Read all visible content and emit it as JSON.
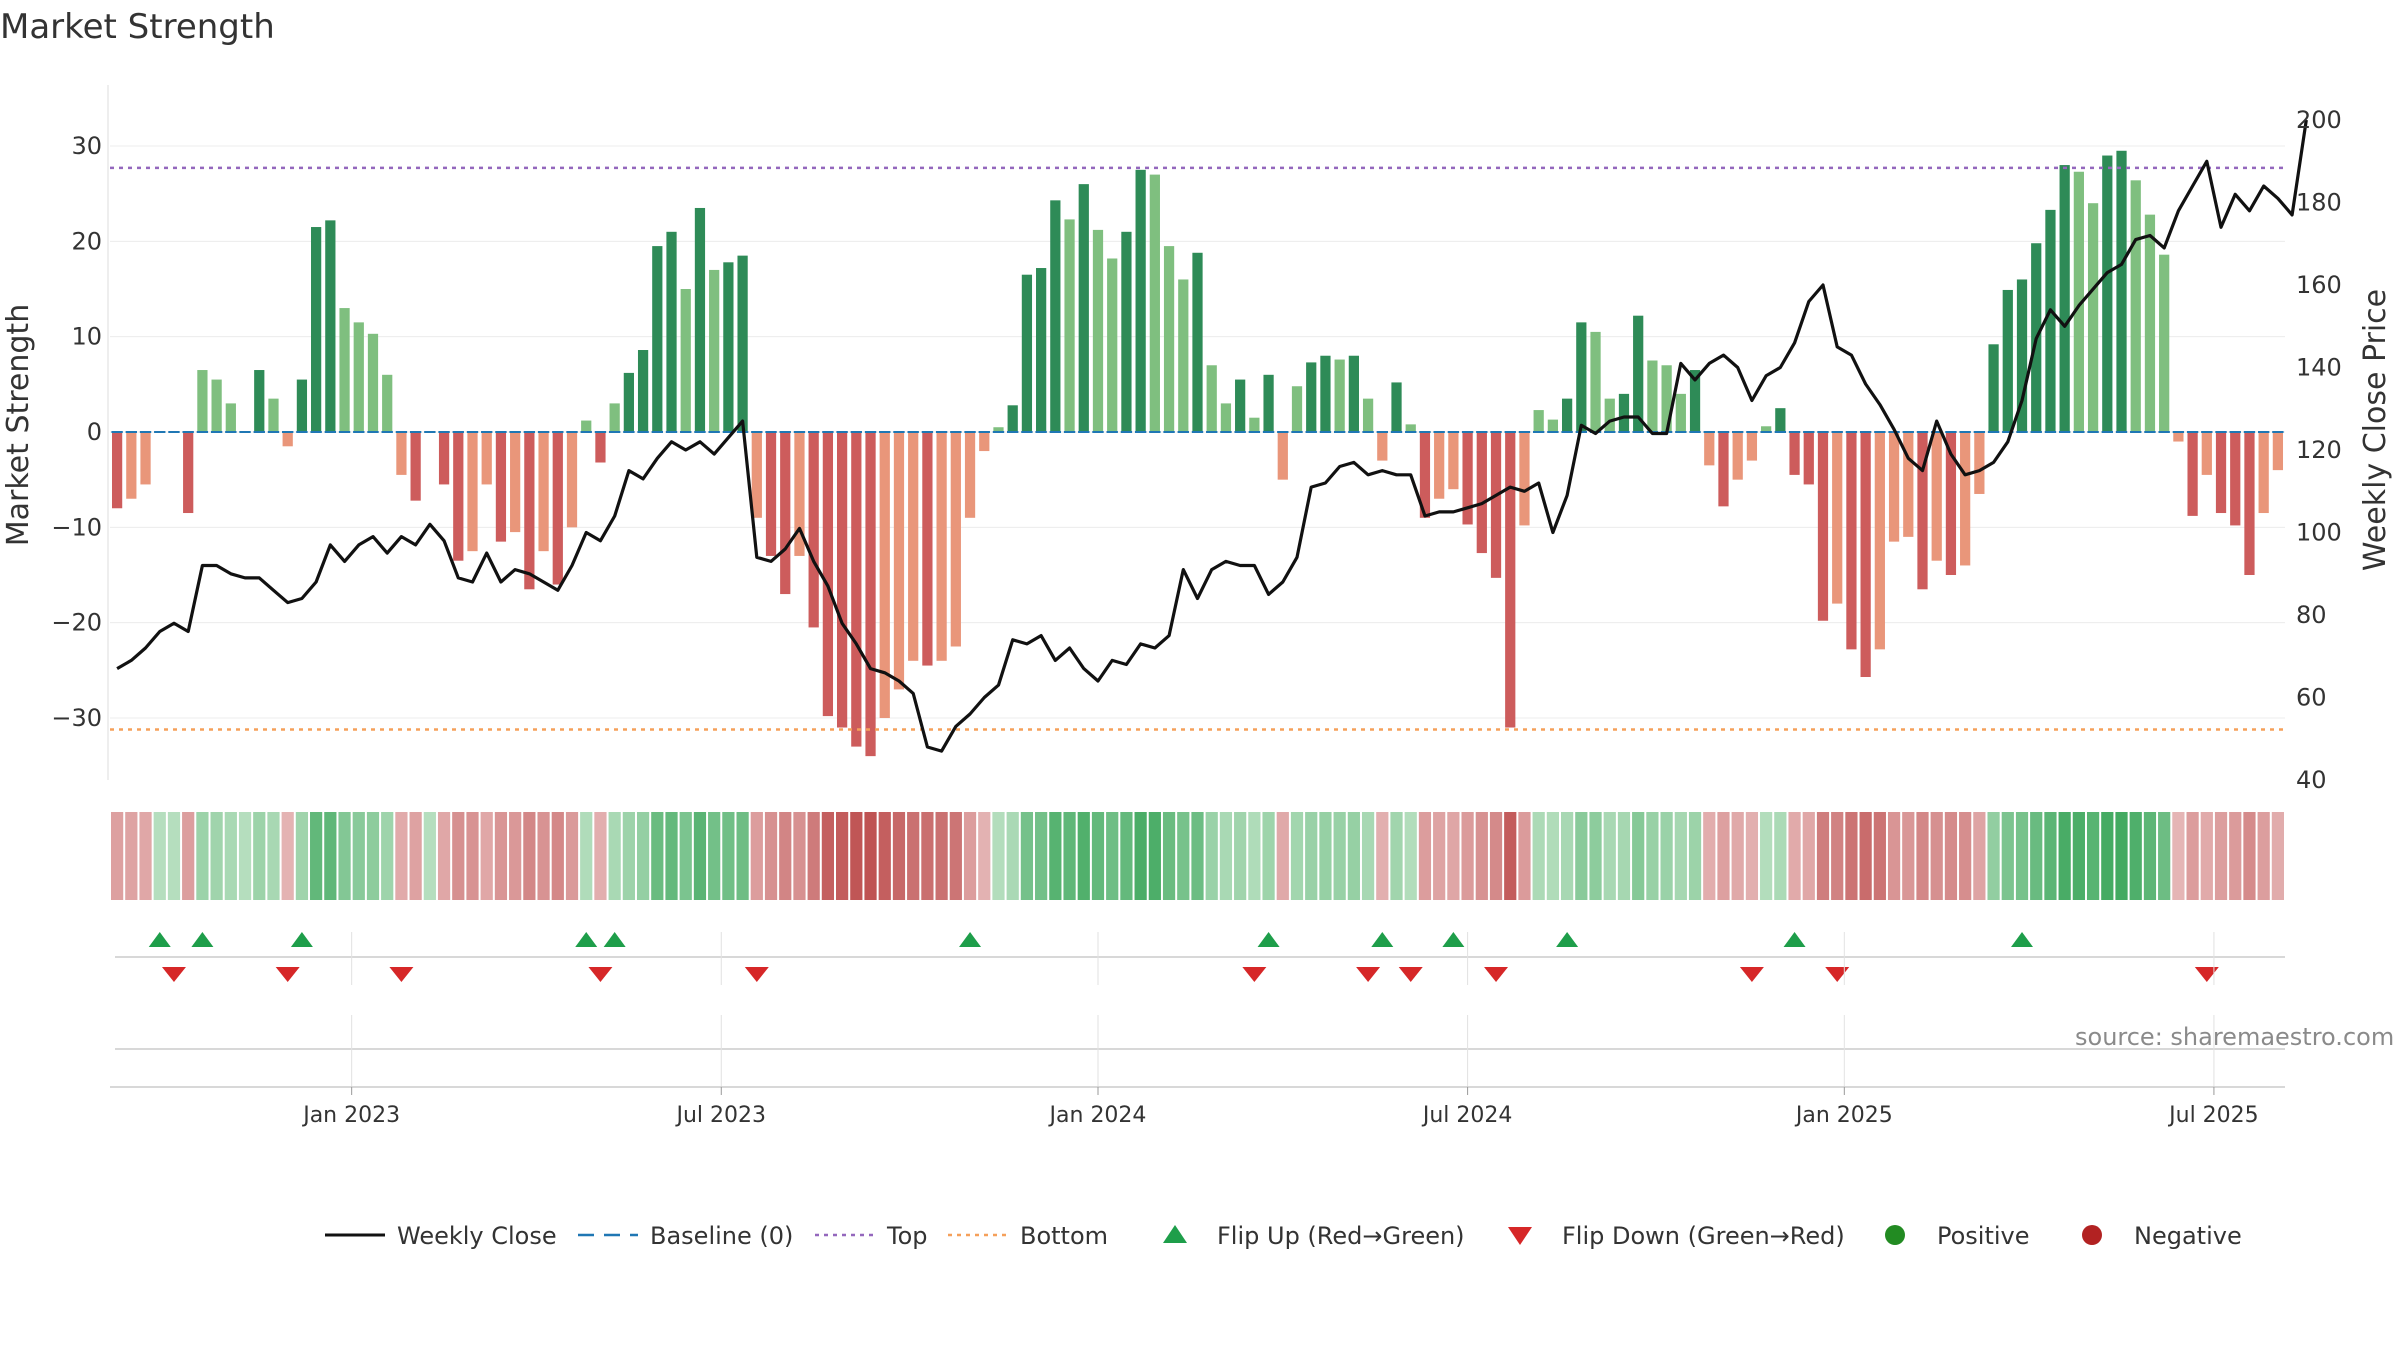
{
  "chart_data": {
    "type": "bar",
    "title": "Market Strength",
    "source_text": "source: sharemaestro.com",
    "left_axis": {
      "label": "Market Strength",
      "ylim": [
        -37,
        37
      ],
      "ticks": [
        30,
        20,
        10,
        0,
        -10,
        -20,
        -30
      ]
    },
    "right_axis": {
      "label": "Weekly Close Price",
      "ylim": [
        40,
        203
      ],
      "ticks": [
        200,
        180,
        160,
        140,
        120,
        100,
        80,
        60,
        40
      ]
    },
    "date_ticks": [
      {
        "label": "Jan 2023",
        "week": 17
      },
      {
        "label": "Jul 2023",
        "week": 43
      },
      {
        "label": "Jan 2024",
        "week": 69.5
      },
      {
        "label": "Jul 2024",
        "week": 95.5
      },
      {
        "label": "Jan 2025",
        "week": 122
      },
      {
        "label": "Jul 2025",
        "week": 148
      }
    ],
    "reference_lines": {
      "top": 27.7,
      "bottom": -31.2,
      "baseline": 0
    },
    "strength": [
      -8,
      -7,
      -5.5,
      0,
      0,
      -8.5,
      6.5,
      5.5,
      3,
      0,
      6.5,
      3.5,
      -1.5,
      5.5,
      21.5,
      22.2,
      13,
      11.5,
      10.3,
      6,
      -4.5,
      -7.2,
      0,
      -5.5,
      -13.5,
      -12.5,
      -5.5,
      -11.5,
      -10.5,
      -16.5,
      -12.5,
      -16,
      -10,
      1.2,
      -3.2,
      3,
      6.2,
      8.6,
      19.5,
      21,
      15,
      23.5,
      17,
      17.8,
      18.5,
      -9,
      -13,
      -17,
      -13,
      -20.5,
      -29.8,
      -31,
      -33,
      -34,
      -30,
      -27,
      -24,
      -24.5,
      -24,
      -22.5,
      -9,
      -2,
      0.5,
      2.8,
      16.5,
      17.2,
      24.3,
      22.3,
      26,
      21.2,
      18.2,
      21,
      27.5,
      27,
      19.5,
      16,
      18.8,
      7,
      3,
      5.5,
      1.5,
      6,
      -5,
      4.8,
      7.3,
      8,
      7.6,
      8,
      3.5,
      -3,
      5.2,
      0.8,
      -9,
      -7,
      -6,
      -9.7,
      -12.7,
      -15.3,
      -31,
      -9.8,
      2.3,
      1.3,
      3.5,
      11.5,
      10.5,
      3.5,
      4,
      12.2,
      7.5,
      7,
      4,
      6.5,
      -3.5,
      -7.8,
      -5,
      -3,
      0.6,
      2.5,
      -4.5,
      -5.5,
      -19.8,
      -18,
      -22.8,
      -25.7,
      -22.8,
      -11.5,
      -11,
      -16.5,
      -13.5,
      -15,
      -14,
      -6.5,
      9.2,
      14.9,
      16,
      19.8,
      23.3,
      28,
      27.3,
      24,
      29,
      29.5,
      26.4,
      22.8,
      18.6,
      -1,
      -8.8,
      -4.5,
      -8.5,
      -9.8,
      -15,
      -8.5,
      -4
    ],
    "weekly_close": [
      67,
      69,
      72,
      76,
      78,
      76,
      92,
      92,
      90,
      89,
      89,
      86,
      83,
      84,
      88,
      97,
      93,
      97,
      99,
      95,
      99,
      97,
      102,
      98,
      89,
      88,
      95,
      88,
      91,
      90,
      88,
      86,
      92,
      100,
      98,
      104,
      115,
      113,
      118,
      122,
      120,
      122,
      119,
      123,
      127,
      94,
      93,
      96,
      101,
      93,
      87,
      78,
      73,
      67,
      66,
      64,
      61,
      48,
      47,
      53,
      56,
      60,
      63,
      74,
      73,
      75,
      69,
      72,
      67,
      64,
      69,
      68,
      73,
      72,
      75,
      91,
      84,
      91,
      93,
      92,
      92,
      85,
      88,
      94,
      111,
      112,
      116,
      117,
      114,
      115,
      114,
      114,
      104,
      105,
      105,
      106,
      107,
      109,
      111,
      110,
      112,
      100,
      109,
      126,
      124,
      127,
      128,
      128,
      124,
      124,
      141,
      137,
      141,
      143,
      140,
      132,
      138,
      140,
      146,
      156,
      160,
      145,
      143,
      136,
      131,
      125,
      118,
      115,
      127,
      119,
      114,
      115,
      117,
      122,
      132,
      147,
      154,
      150,
      155,
      159,
      163,
      165,
      171,
      172,
      169,
      178,
      184,
      190,
      174,
      182,
      178,
      184,
      181,
      177,
      200
    ],
    "flip_up_weeks": [
      3,
      6,
      13,
      33,
      35,
      60,
      81,
      89,
      94,
      102,
      118,
      134
    ],
    "flip_down_weeks": [
      4,
      12,
      20,
      34,
      45,
      80,
      88,
      91,
      97,
      115,
      121,
      147
    ],
    "legend": [
      {
        "label": "Weekly Close",
        "kind": "line"
      },
      {
        "label": "Baseline (0)",
        "kind": "dash"
      },
      {
        "label": "Top",
        "kind": "dot-purple"
      },
      {
        "label": "Bottom",
        "kind": "dot-orange"
      },
      {
        "label": "Flip Up (Red→Green)",
        "kind": "tri-up"
      },
      {
        "label": "Flip Down (Green→Red)",
        "kind": "tri-down"
      },
      {
        "label": "Positive",
        "kind": "circle-green"
      },
      {
        "label": "Negative",
        "kind": "circle-red"
      }
    ],
    "colors": {
      "pos_dark": "#2e8b57",
      "pos_light": "#7fbf7f",
      "neg_dark": "#cd5c5c",
      "neg_light": "#e9967a",
      "line": "#111111",
      "baseline": "#1f77b4",
      "top": "#9467bd",
      "bottom": "#f5a05a",
      "flip_up": "#1e9e4a",
      "flip_down": "#d62728",
      "positive": "#228b22",
      "negative": "#b22222"
    }
  }
}
